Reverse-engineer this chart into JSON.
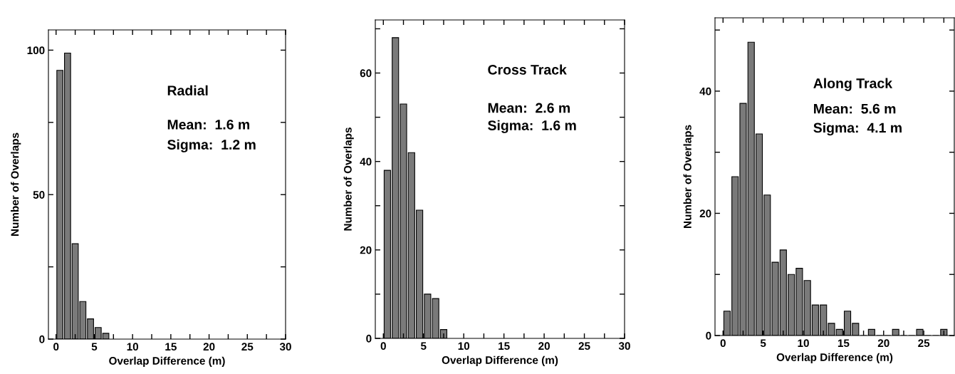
{
  "chart_data": [
    {
      "type": "histogram",
      "xlabel": "Overlap Difference (m)",
      "ylabel": "Number of Overlaps",
      "bins": [
        0,
        1,
        2,
        3,
        4,
        5,
        6,
        7
      ],
      "values": [
        93,
        99,
        33,
        13,
        7,
        4,
        2
      ],
      "color": "#7a7a7a",
      "xlim": [
        -1,
        30
      ],
      "ylim": [
        0,
        107
      ],
      "xticks": [
        0,
        {
          "value": 2.5,
          "label": null
        },
        5,
        {
          "value": 7.5,
          "label": null
        },
        10,
        {
          "value": 12.5,
          "label": null
        },
        15,
        {
          "value": 17.5,
          "label": null
        },
        20,
        {
          "value": 22.5,
          "label": null
        },
        25,
        {
          "value": 27.5,
          "label": null
        },
        30
      ],
      "yticks": [
        0,
        {
          "value": 25,
          "label": null
        },
        50,
        {
          "value": 75,
          "label": null
        },
        100
      ],
      "annotations": [
        "Radial",
        "Mean:  1.6 m",
        "Sigma:  1.2 m"
      ]
    },
    {
      "type": "histogram",
      "xlabel": "Overlap Difference (m)",
      "ylabel": "Number of Overlaps",
      "bins": [
        0,
        1,
        2,
        3,
        4,
        5,
        6,
        7,
        8
      ],
      "values": [
        38,
        68,
        53,
        42,
        29,
        10,
        9,
        2
      ],
      "color": "#7a7a7a",
      "xlim": [
        -1,
        30
      ],
      "ylim": [
        0,
        72
      ],
      "xticks": [
        0,
        {
          "value": 2.5,
          "label": null
        },
        5,
        {
          "value": 7.5,
          "label": null
        },
        10,
        {
          "value": 12.5,
          "label": null
        },
        15,
        {
          "value": 17.5,
          "label": null
        },
        20,
        {
          "value": 22.5,
          "label": null
        },
        25,
        {
          "value": 27.5,
          "label": null
        },
        30
      ],
      "yticks": [
        0,
        {
          "value": 10,
          "label": null
        },
        20,
        {
          "value": 30,
          "label": null
        },
        40,
        {
          "value": 50,
          "label": null
        },
        60,
        {
          "value": 70,
          "label": null
        }
      ],
      "annotations": [
        "Cross Track",
        "Mean:  2.6 m",
        "Sigma:  1.6 m"
      ]
    },
    {
      "type": "histogram",
      "xlabel": "Overlap Difference (m)",
      "ylabel": "Number of Overlaps",
      "bins": [
        0,
        1,
        2,
        3,
        4,
        5,
        6,
        7,
        8,
        9,
        10,
        11,
        12,
        13,
        14,
        15,
        16,
        17,
        18,
        19,
        20,
        21,
        22,
        23,
        24,
        25,
        26,
        27,
        28
      ],
      "values": [
        4,
        26,
        38,
        48,
        33,
        23,
        12,
        14,
        10,
        11,
        9,
        5,
        5,
        2,
        1,
        4,
        2,
        0,
        1,
        0,
        0,
        1,
        0,
        0,
        1,
        0,
        0,
        1
      ],
      "color": "#7a7a7a",
      "xlim": [
        -1,
        28.8
      ],
      "ylim": [
        0,
        52
      ],
      "xticks": [
        0,
        {
          "value": 2.5,
          "label": null
        },
        5,
        {
          "value": 7.5,
          "label": null
        },
        10,
        {
          "value": 12.5,
          "label": null
        },
        15,
        {
          "value": 17.5,
          "label": null
        },
        20,
        {
          "value": 22.5,
          "label": null
        },
        25,
        {
          "value": 27.5,
          "label": null
        }
      ],
      "yticks": [
        0,
        {
          "value": 10,
          "label": null
        },
        20,
        {
          "value": 30,
          "label": null
        },
        40,
        {
          "value": 50,
          "label": null
        }
      ],
      "annotations": [
        "Along Track",
        "Mean:  5.6 m",
        "Sigma:  4.1 m"
      ]
    }
  ]
}
